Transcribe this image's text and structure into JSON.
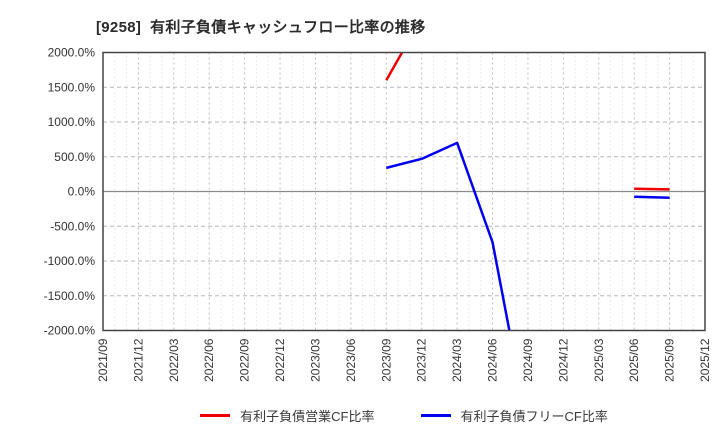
{
  "page": {
    "title": "[9258]  有利子負債キャッシュフロー比率の推移"
  },
  "chart_data": {
    "type": "line",
    "title": "[9258] 有利子負債キャッシュフロー比率の推移",
    "categories": [
      "2021/09",
      "2021/12",
      "2022/03",
      "2022/06",
      "2022/09",
      "2022/12",
      "2023/03",
      "2023/06",
      "2023/09",
      "2023/12",
      "2024/03",
      "2024/06",
      "2024/09",
      "2024/12",
      "2025/03",
      "2025/06",
      "2025/09",
      "2025/12"
    ],
    "series": [
      {
        "name": "有利子負債営業CF比率",
        "color": "#ee0000",
        "values": [
          null,
          null,
          null,
          null,
          null,
          null,
          null,
          null,
          1600,
          2500,
          null,
          null,
          null,
          null,
          null,
          40,
          30,
          null
        ]
      },
      {
        "name": "有利子負債フリーCF比率",
        "color": "#0000ee",
        "values": [
          null,
          null,
          null,
          null,
          null,
          null,
          null,
          null,
          340,
          470,
          700,
          -730,
          -3400,
          null,
          null,
          -75,
          -90,
          null
        ]
      }
    ],
    "xlabel": "",
    "ylabel": "",
    "ylim": [
      -2000,
      2000
    ],
    "y_tick_step": 500,
    "y_tick_labels": [
      "2000.0%",
      "1500.0%",
      "1000.0%",
      "500.0%",
      "0.0%",
      "-500.0%",
      "-1000.0%",
      "-1500.0%",
      "-2000.0%"
    ],
    "x_minor_divisions": 3,
    "grid": true,
    "legend_position": "bottom"
  }
}
